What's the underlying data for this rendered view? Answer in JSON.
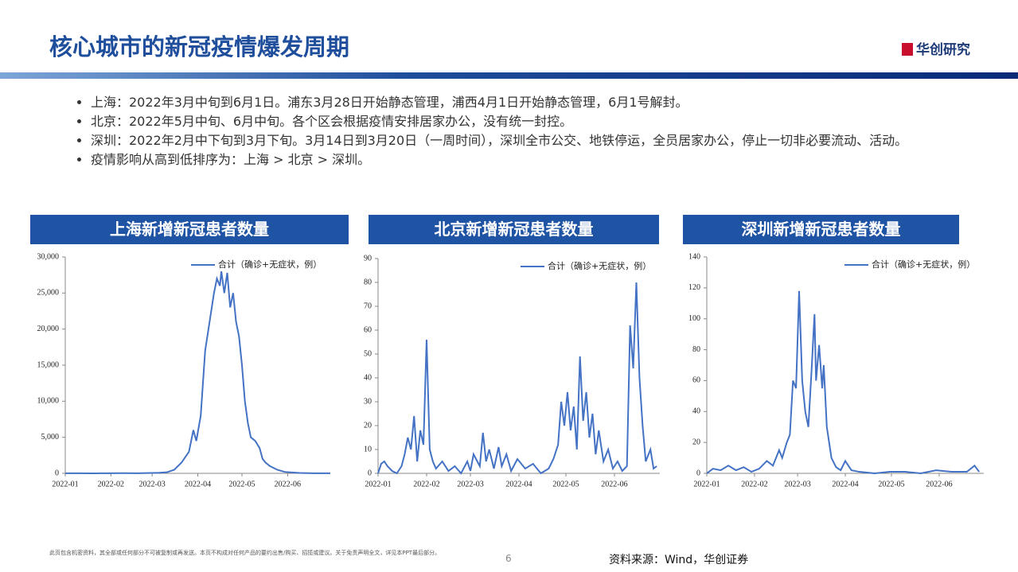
{
  "header": {
    "title": "核心城市的新冠疫情爆发周期",
    "logo": "华创研究"
  },
  "bullets": [
    "上海：2022年3月中旬到6月1日。浦东3月28日开始静态管理，浦西4月1日开始静态管理，6月1号解封。",
    "北京：2022年5月中旬、6月中旬。各个区会根据疫情安排居家办公，没有统一封控。",
    "深圳：2022年2月中下旬到3月下旬。3月14日到3月20日（一周时间），深圳全市公交、地铁停运，全员居家办公，停止一切非必要流动、活动。",
    "疫情影响从高到低排序为：上海 > 北京 > 深圳。"
  ],
  "footer": {
    "disclaimer": "此页包含机密资料，其全部或任何部分不可被复制或再发送。本页不构成对任何产品的要约出售/购买、招揽或建议。关于免责声明全文，详见本PPT最后部分。",
    "page": "6",
    "source": "资料来源：Wind，华创证券"
  },
  "chart_data": [
    {
      "type": "line",
      "title": "上海新增新冠患者数量",
      "xlim": [
        1,
        181
      ],
      "ylim": [
        0,
        30000
      ],
      "xticks": [
        {
          "value": 1,
          "label": "2022-01"
        },
        {
          "value": 32,
          "label": "2022-02"
        },
        {
          "value": 60,
          "label": "2022-03"
        },
        {
          "value": 91,
          "label": "2022-04"
        },
        {
          "value": 121,
          "label": "2022-05"
        },
        {
          "value": 152,
          "label": "2022-06"
        }
      ],
      "yticks": [
        0,
        {
          "value": 5000,
          "label": "5,000"
        },
        {
          "value": 10000,
          "label": "10,000"
        },
        {
          "value": 15000,
          "label": "15,000"
        },
        {
          "value": 20000,
          "label": "20,000"
        },
        {
          "value": 25000,
          "label": "25,000"
        },
        {
          "value": 30000,
          "label": "30,000"
        }
      ],
      "x": [
        1,
        10,
        20,
        30,
        40,
        50,
        60,
        65,
        70,
        75,
        80,
        85,
        88,
        90,
        93,
        96,
        99,
        102,
        104,
        106,
        107,
        109,
        111,
        113,
        115,
        117,
        119,
        121,
        123,
        125,
        127,
        130,
        133,
        135,
        137,
        140,
        145,
        150,
        160,
        170,
        181
      ],
      "series": [
        {
          "name": "合计（确诊+无症状，例）",
          "color": "#4472c4",
          "values": [
            20,
            10,
            5,
            10,
            30,
            20,
            50,
            80,
            150,
            500,
            1500,
            3000,
            6000,
            4500,
            8000,
            17000,
            21000,
            25000,
            27000,
            26000,
            28000,
            25000,
            27800,
            23000,
            25000,
            21000,
            19000,
            15000,
            10000,
            7000,
            5000,
            4500,
            3500,
            2000,
            1500,
            1000,
            500,
            200,
            50,
            20,
            10
          ]
        }
      ]
    },
    {
      "type": "line",
      "title": "北京新增新冠患者数量",
      "xlim": [
        1,
        181
      ],
      "ylim": [
        0,
        90
      ],
      "xticks": [
        {
          "value": 1,
          "label": "2022-01"
        },
        {
          "value": 32,
          "label": "2022-02"
        },
        {
          "value": 60,
          "label": "2022-03"
        },
        {
          "value": 91,
          "label": "2022-04"
        },
        {
          "value": 121,
          "label": "2022-05"
        },
        {
          "value": 152,
          "label": "2022-06"
        }
      ],
      "yticks": [
        0,
        10,
        20,
        30,
        40,
        50,
        60,
        70,
        80,
        90
      ],
      "x": [
        1,
        3,
        5,
        7,
        10,
        13,
        16,
        18,
        20,
        22,
        24,
        26,
        28,
        30,
        32,
        34,
        36,
        38,
        42,
        46,
        50,
        54,
        58,
        60,
        62,
        66,
        68,
        70,
        72,
        75,
        78,
        80,
        83,
        86,
        90,
        95,
        100,
        105,
        110,
        113,
        116,
        118,
        120,
        122,
        124,
        126,
        128,
        130,
        132,
        134,
        136,
        138,
        140,
        142,
        145,
        148,
        151,
        154,
        157,
        160,
        162,
        164,
        166,
        168,
        170,
        172,
        175,
        177,
        179
      ],
      "series": [
        {
          "name": "合计（确诊+无症状，例）",
          "color": "#4472c4",
          "values": [
            0,
            4,
            5,
            3,
            1,
            0,
            3,
            8,
            15,
            10,
            24,
            5,
            18,
            12,
            56,
            10,
            5,
            2,
            5,
            1,
            3,
            0,
            5,
            1,
            8,
            3,
            17,
            5,
            10,
            2,
            11,
            3,
            8,
            1,
            6,
            2,
            4,
            0,
            2,
            6,
            12,
            30,
            20,
            34,
            18,
            28,
            10,
            49,
            22,
            34,
            15,
            25,
            8,
            18,
            5,
            10,
            2,
            5,
            1,
            3,
            62,
            44,
            80,
            40,
            20,
            5,
            10,
            2,
            3
          ]
        }
      ]
    },
    {
      "type": "line",
      "title": "深圳新增新冠患者数量",
      "xlim": [
        1,
        181
      ],
      "ylim": [
        0,
        140
      ],
      "xticks": [
        {
          "value": 1,
          "label": "2022-01"
        },
        {
          "value": 32,
          "label": "2022-02"
        },
        {
          "value": 60,
          "label": "2022-03"
        },
        {
          "value": 91,
          "label": "2022-04"
        },
        {
          "value": 121,
          "label": "2022-05"
        },
        {
          "value": 152,
          "label": "2022-06"
        }
      ],
      "yticks": [
        0,
        20,
        40,
        60,
        80,
        100,
        120,
        140
      ],
      "x": [
        1,
        5,
        10,
        15,
        20,
        25,
        30,
        35,
        40,
        44,
        48,
        50,
        53,
        55,
        57,
        59,
        61,
        63,
        65,
        67,
        69,
        71,
        72,
        74,
        76,
        77,
        79,
        82,
        85,
        88,
        91,
        95,
        100,
        110,
        120,
        130,
        140,
        150,
        160,
        170,
        175,
        178
      ],
      "series": [
        {
          "name": "合计（确诊+无症状，例）",
          "color": "#4472c4",
          "values": [
            0,
            3,
            2,
            5,
            2,
            4,
            1,
            3,
            8,
            5,
            15,
            10,
            20,
            25,
            60,
            55,
            118,
            60,
            40,
            30,
            65,
            103,
            60,
            83,
            55,
            70,
            30,
            10,
            4,
            2,
            8,
            2,
            1,
            0,
            1,
            1,
            0,
            2,
            1,
            1,
            5,
            1
          ]
        }
      ]
    }
  ]
}
